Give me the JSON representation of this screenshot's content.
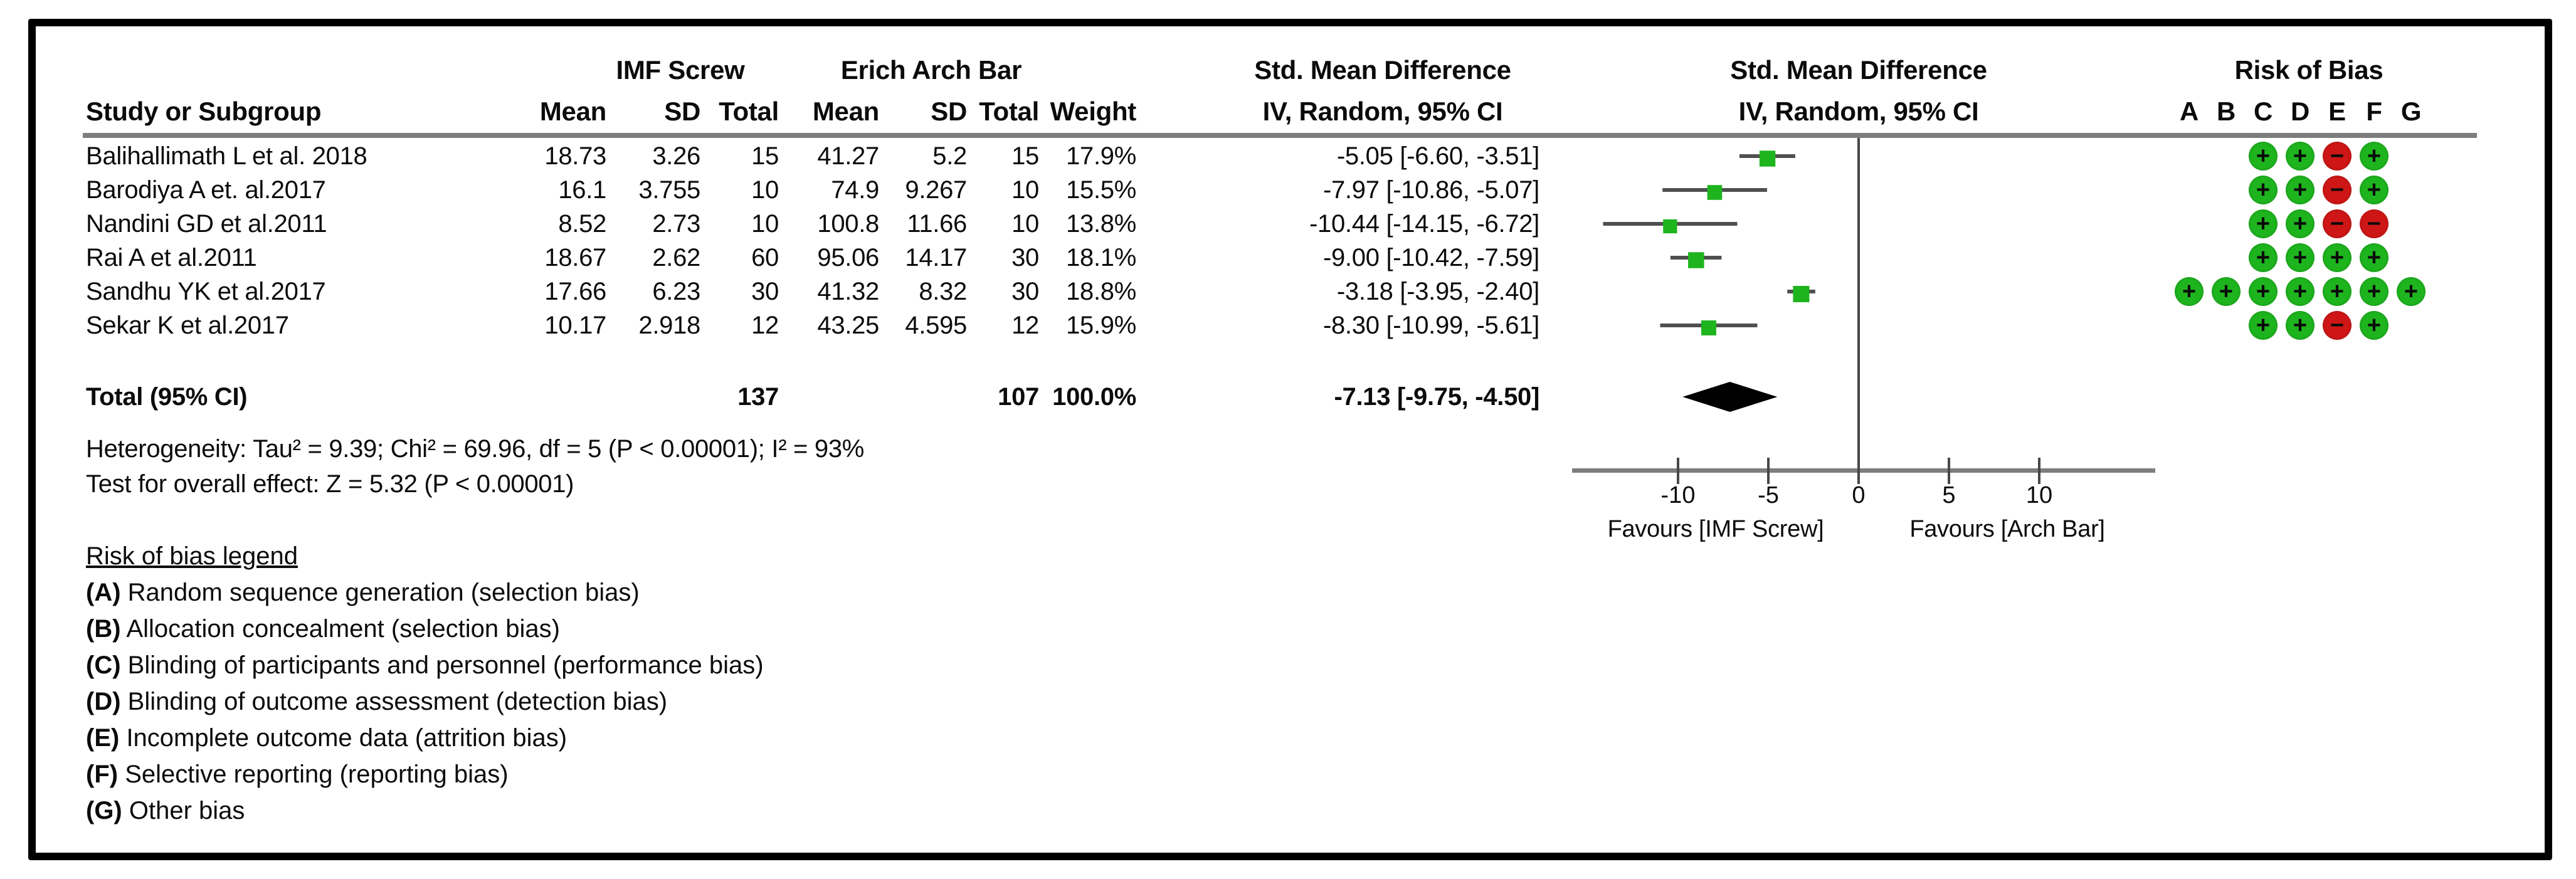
{
  "header": {
    "group1": "IMF Screw",
    "group2": "Erich Arch Bar",
    "smd_text_col": "Std. Mean Difference",
    "smd_plot_col": "Std. Mean Difference",
    "rob_title": "Risk of Bias",
    "study": "Study or Subgroup",
    "mean1": "Mean",
    "sd1": "SD",
    "total1": "Total",
    "mean2": "Mean",
    "sd2": "SD",
    "total2": "Total",
    "weight": "Weight",
    "iv_text_col": "IV, Random, 95% CI",
    "iv_plot_col": "IV, Random, 95% CI",
    "rob_letters": [
      "A",
      "B",
      "C",
      "D",
      "E",
      "F",
      "G"
    ]
  },
  "chart_data": {
    "type": "scatter",
    "subtype": "forest_plot",
    "title": "Std. Mean Difference IV, Random, 95% CI — IMF Screw vs Erich Arch Bar",
    "xlabel": "Std. Mean Difference",
    "axis": {
      "ticks": [
        -10,
        -5,
        0,
        5,
        10
      ],
      "range": [
        -15.8,
        16.4
      ],
      "favours_left": "Favours [IMF Screw]",
      "favours_right": "Favours [Arch Bar]"
    },
    "studies": [
      {
        "name": "Balihallimath L et al. 2018",
        "mean1": "18.73",
        "sd1": "3.26",
        "total1": "15",
        "mean2": "41.27",
        "sd2": "5.2",
        "total2": "15",
        "weight": "17.9%",
        "weight_pct": 17.9,
        "ci_text": "-5.05 [-6.60, -3.51]",
        "est": -5.05,
        "lo": -6.6,
        "hi": -3.51,
        "rob": {
          "C": "+",
          "D": "+",
          "E": "-",
          "F": "+"
        }
      },
      {
        "name": "Barodiya A et. al.2017",
        "mean1": "16.1",
        "sd1": "3.755",
        "total1": "10",
        "mean2": "74.9",
        "sd2": "9.267",
        "total2": "10",
        "weight": "15.5%",
        "weight_pct": 15.5,
        "ci_text": "-7.97 [-10.86, -5.07]",
        "est": -7.97,
        "lo": -10.86,
        "hi": -5.07,
        "rob": {
          "C": "+",
          "D": "+",
          "E": "-",
          "F": "+"
        }
      },
      {
        "name": "Nandini GD et al.2011",
        "mean1": "8.52",
        "sd1": "2.73",
        "total1": "10",
        "mean2": "100.8",
        "sd2": "11.66",
        "total2": "10",
        "weight": "13.8%",
        "weight_pct": 13.8,
        "ci_text": "-10.44 [-14.15, -6.72]",
        "est": -10.44,
        "lo": -14.15,
        "hi": -6.72,
        "rob": {
          "C": "+",
          "D": "+",
          "E": "-",
          "F": "-"
        }
      },
      {
        "name": "Rai A et al.2011",
        "mean1": "18.67",
        "sd1": "2.62",
        "total1": "60",
        "mean2": "95.06",
        "sd2": "14.17",
        "total2": "30",
        "weight": "18.1%",
        "weight_pct": 18.1,
        "ci_text": "-9.00 [-10.42, -7.59]",
        "est": -9.0,
        "lo": -10.42,
        "hi": -7.59,
        "rob": {
          "C": "+",
          "D": "+",
          "E": "+",
          "F": "+"
        }
      },
      {
        "name": "Sandhu YK et al.2017",
        "mean1": "17.66",
        "sd1": "6.23",
        "total1": "30",
        "mean2": "41.32",
        "sd2": "8.32",
        "total2": "30",
        "weight": "18.8%",
        "weight_pct": 18.8,
        "ci_text": "-3.18 [-3.95, -2.40]",
        "est": -3.18,
        "lo": -3.95,
        "hi": -2.4,
        "rob": {
          "A": "+",
          "B": "+",
          "C": "+",
          "D": "+",
          "E": "+",
          "F": "+",
          "G": "+"
        }
      },
      {
        "name": "Sekar K et al.2017",
        "mean1": "10.17",
        "sd1": "2.918",
        "total1": "12",
        "mean2": "43.25",
        "sd2": "4.595",
        "total2": "12",
        "weight": "15.9%",
        "weight_pct": 15.9,
        "ci_text": "-8.30 [-10.99, -5.61]",
        "est": -8.3,
        "lo": -10.99,
        "hi": -5.61,
        "rob": {
          "C": "+",
          "D": "+",
          "E": "-",
          "F": "+"
        }
      }
    ],
    "total": {
      "label": "Total (95% CI)",
      "total1": "137",
      "total2": "107",
      "weight": "100.0%",
      "ci_text": "-7.13 [-9.75, -4.50]",
      "est": -7.13,
      "lo": -9.75,
      "hi": -4.5
    }
  },
  "footer": {
    "heterogeneity": "Heterogeneity: Tau² = 9.39; Chi² = 69.96, df = 5 (P < 0.00001); I² = 93%",
    "overall_effect": "Test for overall effect: Z = 5.32 (P < 0.00001)"
  },
  "legend": {
    "title": "Risk of bias legend",
    "items": [
      {
        "key": "(A)",
        "text": " Random sequence generation (selection bias)"
      },
      {
        "key": "(B)",
        "text": " Allocation concealment (selection bias)"
      },
      {
        "key": "(C)",
        "text": " Blinding of participants and personnel (performance bias)"
      },
      {
        "key": "(D)",
        "text": " Blinding of outcome assessment (detection bias)"
      },
      {
        "key": "(E)",
        "text": " Incomplete outcome data (attrition bias)"
      },
      {
        "key": "(F)",
        "text": " Selective reporting (reporting bias)"
      },
      {
        "key": "(G)",
        "text": " Other bias"
      }
    ]
  },
  "colors": {
    "low_risk_green": "#1eb41e",
    "high_risk_red": "#ce1616",
    "line_gray": "#7d7d7d",
    "dark_line": "#474747",
    "marker_green": "#1eb41e",
    "diamond_black": "#000000"
  },
  "glyphs": {
    "plus": "+",
    "minus": "−"
  }
}
